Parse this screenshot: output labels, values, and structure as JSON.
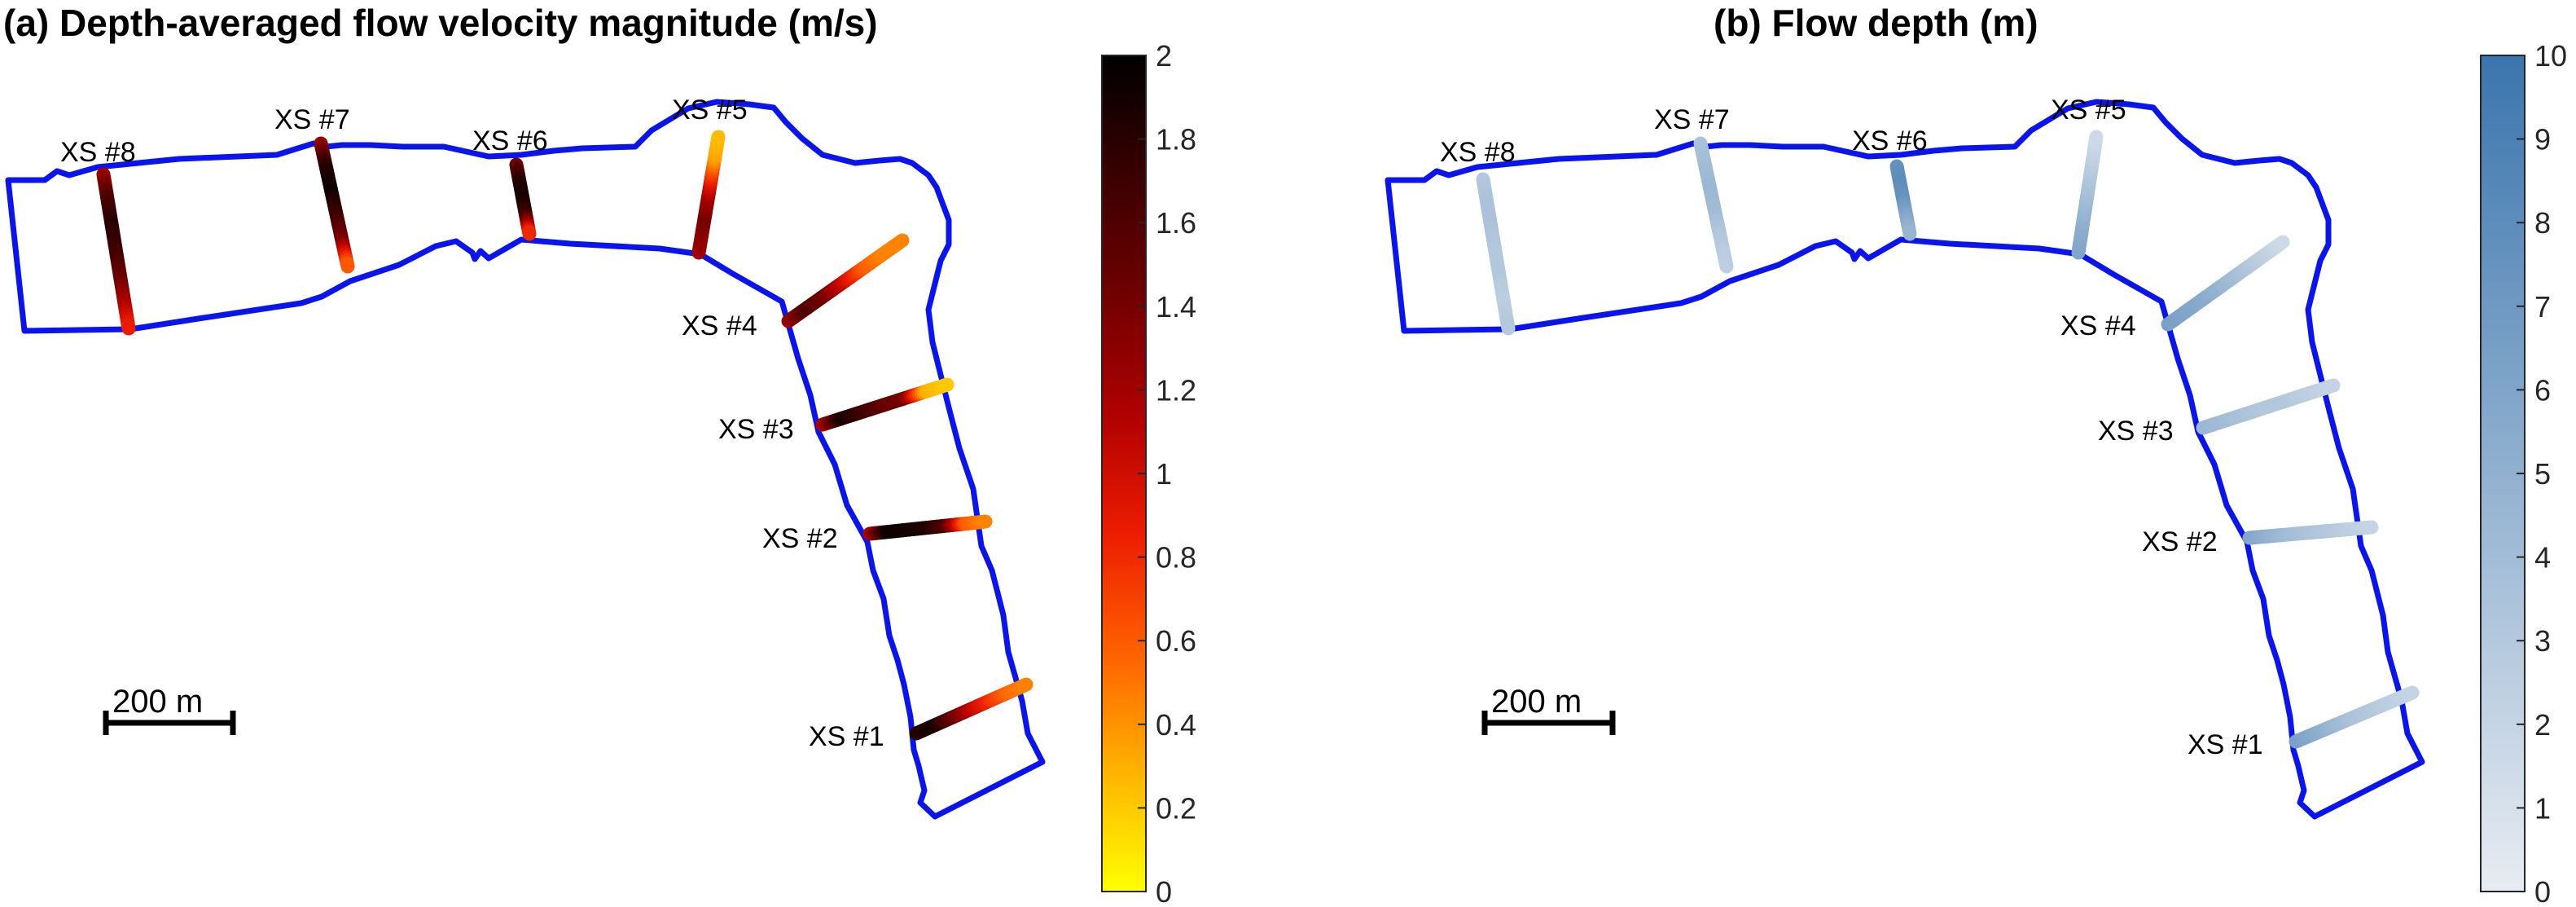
{
  "colors": {
    "river_outline": "#0a14ee",
    "scale_bar": "#000000",
    "velocity_colormap": [
      "#ffff00",
      "#ffb300",
      "#ff6000",
      "#ec1c00",
      "#b00000",
      "#700000",
      "#3a0000",
      "#000000"
    ],
    "depth_colormap": [
      "#e8ecf2",
      "#3a75ad"
    ]
  },
  "panels": [
    {
      "id": "a",
      "title": "(a) Depth-averaged flow velocity magnitude (m/s)",
      "scale_bar_label": "200 m",
      "colorbar": {
        "min": 0,
        "max": 2,
        "ticks": [
          "0",
          "0.2",
          "0.4",
          "0.6",
          "0.8",
          "1",
          "1.2",
          "1.4",
          "1.6",
          "1.8",
          "2"
        ]
      },
      "cross_sections": [
        {
          "label": "XS #1",
          "values": [
            1.8,
            1.9,
            1.5,
            1.1,
            0.8,
            0.55,
            0.45
          ]
        },
        {
          "label": "XS #2",
          "values": [
            1.1,
            1.95,
            1.9,
            1.85,
            1.6,
            0.6,
            0.45
          ]
        },
        {
          "label": "XS #3",
          "values": [
            1.1,
            1.9,
            1.7,
            1.5,
            1.4,
            0.3,
            0.2
          ]
        },
        {
          "label": "XS #4",
          "values": [
            1.2,
            1.6,
            1.4,
            1.0,
            0.6,
            0.45,
            0.45
          ]
        },
        {
          "label": "XS #5",
          "values": [
            1.2,
            1.3,
            1.4,
            1.2,
            0.8,
            0.35,
            0.25
          ]
        },
        {
          "label": "XS #6",
          "values": [
            1.4,
            1.8,
            1.9,
            1.7,
            0.75
          ]
        },
        {
          "label": "XS #7",
          "values": [
            1.2,
            1.8,
            1.95,
            1.7,
            1.4,
            0.55
          ]
        },
        {
          "label": "XS #8",
          "values": [
            1.2,
            1.6,
            1.8,
            1.7,
            1.5,
            1.2,
            0.85
          ]
        }
      ]
    },
    {
      "id": "b",
      "title": "(b) Flow depth (m)",
      "scale_bar_label": "200 m",
      "colorbar": {
        "min": 0,
        "max": 10,
        "ticks": [
          "0",
          "1",
          "2",
          "3",
          "4",
          "5",
          "6",
          "7",
          "8",
          "9",
          "10"
        ]
      },
      "cross_sections": [
        {
          "label": "XS #1",
          "values": [
            6.5,
            5.5,
            4.5,
            3.5,
            3.0,
            2.5,
            2.0
          ]
        },
        {
          "label": "XS #2",
          "values": [
            6.0,
            5.0,
            4.0,
            3.5,
            3.0,
            2.5,
            2.0
          ]
        },
        {
          "label": "XS #3",
          "values": [
            4.5,
            4.0,
            3.5,
            3.0,
            3.0,
            2.5,
            2.0
          ]
        },
        {
          "label": "XS #4",
          "values": [
            6.5,
            6.0,
            5.5,
            4.5,
            3.5,
            2.5,
            1.5
          ]
        },
        {
          "label": "XS #5",
          "values": [
            6.0,
            5.5,
            4.5,
            3.5,
            2.5,
            1.5
          ]
        },
        {
          "label": "XS #6",
          "values": [
            7.5,
            8.0,
            7.5,
            6.0,
            4.5
          ]
        },
        {
          "label": "XS #7",
          "values": [
            3.5,
            4.0,
            4.5,
            4.0,
            3.0,
            2.5
          ]
        },
        {
          "label": "XS #8",
          "values": [
            3.0,
            3.5,
            3.5,
            3.0,
            3.0,
            2.5,
            3.0
          ]
        }
      ]
    }
  ]
}
